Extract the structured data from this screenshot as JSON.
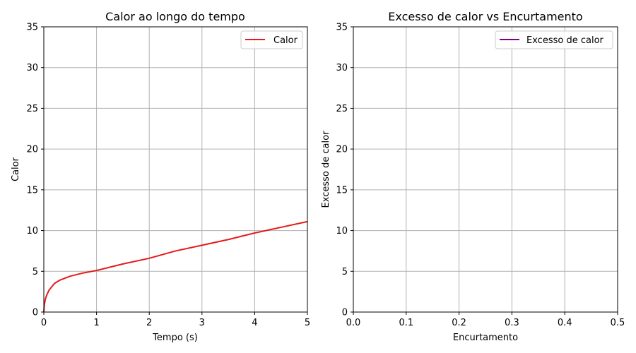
{
  "chart_data": [
    {
      "type": "line",
      "title": "Calor ao longo do tempo",
      "xlabel": "Tempo (s)",
      "ylabel": "Calor",
      "xlim": [
        0,
        5
      ],
      "ylim": [
        0,
        35
      ],
      "xticks": [
        "0",
        "1",
        "2",
        "3",
        "4",
        "5"
      ],
      "yticks": [
        "0",
        "5",
        "10",
        "15",
        "20",
        "25",
        "30",
        "35"
      ],
      "grid": true,
      "legend_position": "top-right",
      "series": [
        {
          "name": "Calor",
          "color": "#e41a1c",
          "x": [
            0,
            0.01,
            0.03,
            0.05,
            0.1,
            0.2,
            0.3,
            0.5,
            0.75,
            1,
            1.5,
            2,
            2.5,
            3,
            3.5,
            4,
            4.5,
            5
          ],
          "y": [
            0,
            0.9,
            1.6,
            2.0,
            2.7,
            3.5,
            3.9,
            4.4,
            4.8,
            5.1,
            5.9,
            6.6,
            7.5,
            8.2,
            8.9,
            9.7,
            10.4,
            11.1
          ]
        }
      ]
    },
    {
      "type": "line",
      "title": "Excesso de calor vs Encurtamento",
      "xlabel": "Encurtamento",
      "ylabel": "Excesso de calor",
      "xlim": [
        0,
        0.5
      ],
      "ylim": [
        0,
        35
      ],
      "xticks": [
        "0.0",
        "0.1",
        "0.2",
        "0.3",
        "0.4",
        "0.5"
      ],
      "yticks": [
        "0",
        "5",
        "10",
        "15",
        "20",
        "25",
        "30",
        "35"
      ],
      "grid": true,
      "legend_position": "top-right",
      "series": [
        {
          "name": "Excesso de calor",
          "color": "#800080",
          "x": [],
          "y": []
        }
      ]
    }
  ]
}
